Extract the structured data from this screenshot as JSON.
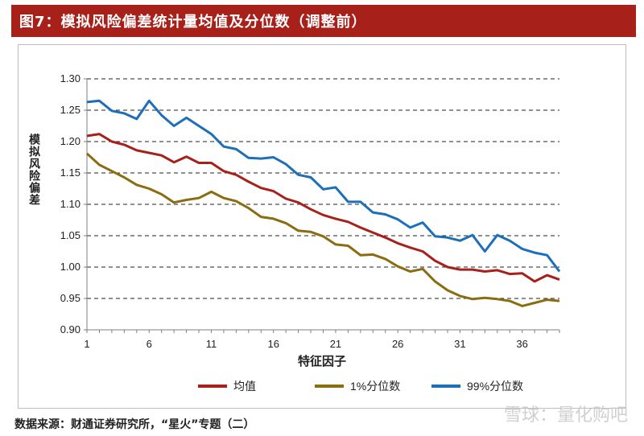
{
  "header": {
    "title": "图7：模拟风险偏差统计量均值及分位数（调整前）"
  },
  "footer": {
    "source": "数据来源：财通证券研究所，“星火”专题（二）"
  },
  "watermark": {
    "text": "雪球：量化购吧"
  },
  "colors": {
    "mean": "#a8201a",
    "p1": "#8a6d10",
    "p99": "#1c6fb8",
    "banner": "#a8201a"
  },
  "chart_data": {
    "type": "line",
    "title": "",
    "xlabel": "特征因子",
    "ylabel": "模拟风险偏差",
    "x": [
      1,
      2,
      3,
      4,
      5,
      6,
      7,
      8,
      9,
      10,
      11,
      12,
      13,
      14,
      15,
      16,
      17,
      18,
      19,
      20,
      21,
      22,
      23,
      24,
      25,
      26,
      27,
      28,
      29,
      30,
      31,
      32,
      33,
      34,
      35,
      36,
      37,
      38,
      39
    ],
    "x_ticks": [
      "1",
      "6",
      "11",
      "16",
      "21",
      "26",
      "31",
      "36"
    ],
    "y_ticks": [
      "0.90",
      "0.95",
      "1.00",
      "1.05",
      "1.10",
      "1.15",
      "1.20",
      "1.25",
      "1.30"
    ],
    "ylim": [
      0.9,
      1.3
    ],
    "xlim": [
      1,
      39
    ],
    "grid": "horizontal-dashed",
    "legend_position": "bottom",
    "series": [
      {
        "name": "均值",
        "color": "#a8201a",
        "values": [
          1.209,
          1.212,
          1.2,
          1.195,
          1.186,
          1.182,
          1.178,
          1.167,
          1.176,
          1.166,
          1.166,
          1.153,
          1.147,
          1.136,
          1.126,
          1.121,
          1.109,
          1.103,
          1.092,
          1.083,
          1.077,
          1.072,
          1.063,
          1.055,
          1.047,
          1.038,
          1.031,
          1.025,
          1.01,
          1.0,
          0.996,
          0.996,
          0.993,
          0.995,
          0.989,
          0.99,
          0.977,
          0.987,
          0.98
        ]
      },
      {
        "name": "1%分位数",
        "color": "#8a6d10",
        "values": [
          1.181,
          1.163,
          1.153,
          1.143,
          1.131,
          1.125,
          1.116,
          1.103,
          1.107,
          1.11,
          1.12,
          1.11,
          1.105,
          1.094,
          1.08,
          1.077,
          1.07,
          1.058,
          1.056,
          1.049,
          1.036,
          1.034,
          1.019,
          1.02,
          1.013,
          1.001,
          0.993,
          0.997,
          0.977,
          0.963,
          0.954,
          0.949,
          0.951,
          0.949,
          0.946,
          0.938,
          0.943,
          0.948,
          0.946
        ]
      },
      {
        "name": "99%分位数",
        "color": "#1c6fb8",
        "values": [
          1.263,
          1.265,
          1.249,
          1.245,
          1.236,
          1.265,
          1.242,
          1.225,
          1.238,
          1.225,
          1.212,
          1.192,
          1.188,
          1.174,
          1.173,
          1.175,
          1.164,
          1.147,
          1.143,
          1.124,
          1.127,
          1.104,
          1.104,
          1.087,
          1.084,
          1.076,
          1.063,
          1.071,
          1.049,
          1.047,
          1.042,
          1.051,
          1.025,
          1.051,
          1.042,
          1.029,
          1.023,
          1.019,
          0.993
        ]
      }
    ]
  }
}
